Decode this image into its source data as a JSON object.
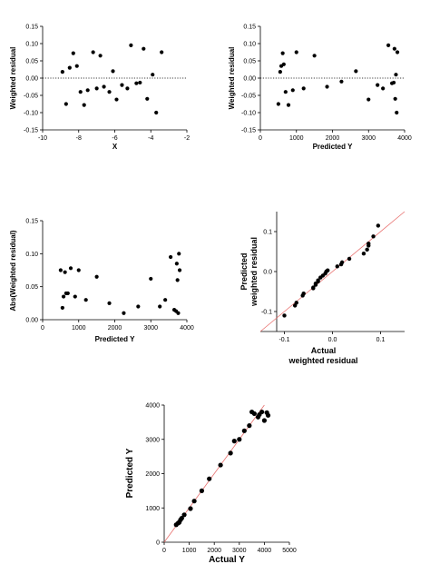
{
  "chart_data": [
    {
      "id": "p1",
      "type": "scatter",
      "xlabel": "X",
      "ylabel": "Weighted residual",
      "xlim": [
        -10,
        -2
      ],
      "ylim": [
        -0.15,
        0.15
      ],
      "xticks": [
        -10,
        -8,
        -6,
        -4,
        -2
      ],
      "yticks": [
        -0.15,
        -0.1,
        -0.05,
        0.0,
        0.05,
        0.1,
        0.15
      ],
      "xtick_labels": [
        "-10",
        "-8",
        "-6",
        "-4",
        "-2"
      ],
      "ytick_labels": [
        "-0.15",
        "-0.10",
        "-0.05",
        "0.00",
        "0.05",
        "0.10",
        "0.15"
      ],
      "reference_line": {
        "type": "horizontal",
        "y": 0,
        "style": "dotted"
      },
      "points": [
        {
          "x": -8.9,
          "y": 0.018
        },
        {
          "x": -8.7,
          "y": -0.075
        },
        {
          "x": -8.5,
          "y": 0.03
        },
        {
          "x": -8.3,
          "y": 0.072
        },
        {
          "x": -8.1,
          "y": 0.035
        },
        {
          "x": -7.9,
          "y": -0.04
        },
        {
          "x": -7.7,
          "y": -0.078
        },
        {
          "x": -7.5,
          "y": -0.035
        },
        {
          "x": -7.2,
          "y": 0.075
        },
        {
          "x": -7.0,
          "y": -0.03
        },
        {
          "x": -6.8,
          "y": 0.065
        },
        {
          "x": -6.6,
          "y": -0.025
        },
        {
          "x": -6.3,
          "y": -0.04
        },
        {
          "x": -6.1,
          "y": 0.02
        },
        {
          "x": -5.9,
          "y": -0.062
        },
        {
          "x": -5.6,
          "y": -0.02
        },
        {
          "x": -5.3,
          "y": -0.03
        },
        {
          "x": -5.1,
          "y": 0.095
        },
        {
          "x": -4.8,
          "y": -0.015
        },
        {
          "x": -4.6,
          "y": -0.013
        },
        {
          "x": -4.4,
          "y": 0.085
        },
        {
          "x": -4.2,
          "y": -0.06
        },
        {
          "x": -3.9,
          "y": 0.01
        },
        {
          "x": -3.7,
          "y": -0.1
        },
        {
          "x": -3.4,
          "y": 0.075
        }
      ]
    },
    {
      "id": "p2",
      "type": "scatter",
      "xlabel": "Predicted Y",
      "ylabel": "Weighted residual",
      "xlim": [
        0,
        4000
      ],
      "ylim": [
        -0.15,
        0.15
      ],
      "xticks": [
        0,
        1000,
        2000,
        3000,
        4000
      ],
      "yticks": [
        -0.15,
        -0.1,
        -0.05,
        0.0,
        0.05,
        0.1,
        0.15
      ],
      "xtick_labels": [
        "0",
        "1000",
        "2000",
        "3000",
        "4000"
      ],
      "ytick_labels": [
        "-0.15",
        "-0.10",
        "-0.05",
        "0.00",
        "0.05",
        "0.10",
        "0.15"
      ],
      "reference_line": {
        "type": "horizontal",
        "y": 0,
        "style": "dotted"
      },
      "points": [
        {
          "x": 500,
          "y": -0.075
        },
        {
          "x": 550,
          "y": 0.018
        },
        {
          "x": 580,
          "y": 0.035
        },
        {
          "x": 620,
          "y": 0.072
        },
        {
          "x": 650,
          "y": 0.04
        },
        {
          "x": 700,
          "y": -0.04
        },
        {
          "x": 780,
          "y": -0.078
        },
        {
          "x": 900,
          "y": -0.035
        },
        {
          "x": 1000,
          "y": 0.075
        },
        {
          "x": 1200,
          "y": -0.03
        },
        {
          "x": 1500,
          "y": 0.065
        },
        {
          "x": 1850,
          "y": -0.025
        },
        {
          "x": 2250,
          "y": -0.01
        },
        {
          "x": 2650,
          "y": 0.02
        },
        {
          "x": 3000,
          "y": -0.062
        },
        {
          "x": 3250,
          "y": -0.02
        },
        {
          "x": 3400,
          "y": -0.03
        },
        {
          "x": 3550,
          "y": 0.095
        },
        {
          "x": 3650,
          "y": -0.015
        },
        {
          "x": 3700,
          "y": -0.013
        },
        {
          "x": 3720,
          "y": 0.085
        },
        {
          "x": 3740,
          "y": -0.06
        },
        {
          "x": 3760,
          "y": 0.01
        },
        {
          "x": 3780,
          "y": -0.1
        },
        {
          "x": 3800,
          "y": 0.075
        }
      ]
    },
    {
      "id": "p3",
      "type": "scatter",
      "xlabel": "Predicted Y",
      "ylabel": "Abs(Weighted residual)",
      "xlim": [
        0,
        4000
      ],
      "ylim": [
        0,
        0.15
      ],
      "xticks": [
        0,
        1000,
        2000,
        3000,
        4000
      ],
      "yticks": [
        0,
        0.05,
        0.1,
        0.15
      ],
      "xtick_labels": [
        "0",
        "1000",
        "2000",
        "3000",
        "4000"
      ],
      "ytick_labels": [
        "0.00",
        "0.05",
        "0.10",
        "0.15"
      ],
      "points": [
        {
          "x": 500,
          "y": 0.075
        },
        {
          "x": 550,
          "y": 0.018
        },
        {
          "x": 580,
          "y": 0.035
        },
        {
          "x": 620,
          "y": 0.072
        },
        {
          "x": 650,
          "y": 0.04
        },
        {
          "x": 700,
          "y": 0.04
        },
        {
          "x": 780,
          "y": 0.078
        },
        {
          "x": 900,
          "y": 0.035
        },
        {
          "x": 1000,
          "y": 0.075
        },
        {
          "x": 1200,
          "y": 0.03
        },
        {
          "x": 1500,
          "y": 0.065
        },
        {
          "x": 1850,
          "y": 0.025
        },
        {
          "x": 2250,
          "y": 0.01
        },
        {
          "x": 2650,
          "y": 0.02
        },
        {
          "x": 3000,
          "y": 0.062
        },
        {
          "x": 3250,
          "y": 0.02
        },
        {
          "x": 3400,
          "y": 0.03
        },
        {
          "x": 3550,
          "y": 0.095
        },
        {
          "x": 3650,
          "y": 0.015
        },
        {
          "x": 3700,
          "y": 0.013
        },
        {
          "x": 3720,
          "y": 0.085
        },
        {
          "x": 3740,
          "y": 0.06
        },
        {
          "x": 3760,
          "y": 0.01
        },
        {
          "x": 3780,
          "y": 0.1
        },
        {
          "x": 3800,
          "y": 0.075
        }
      ]
    },
    {
      "id": "p4",
      "type": "scatter",
      "xlabel": "Actual\nweighted residual",
      "ylabel": "Predicted\nweighted residual",
      "xlim": [
        -0.15,
        0.15
      ],
      "ylim": [
        -0.15,
        0.15
      ],
      "xticks": [
        -0.1,
        0.0,
        0.1
      ],
      "yticks": [
        -0.1,
        0.0,
        0.1
      ],
      "xtick_labels": [
        "-0.1",
        "0.0",
        "0.1"
      ],
      "ytick_labels": [
        "-0.1",
        "0.0",
        "0.1"
      ],
      "reference_line": {
        "type": "identity",
        "color": "#e8706e"
      },
      "points": [
        {
          "x": -0.1,
          "y": -0.11
        },
        {
          "x": -0.078,
          "y": -0.085
        },
        {
          "x": -0.075,
          "y": -0.078
        },
        {
          "x": -0.062,
          "y": -0.06
        },
        {
          "x": -0.06,
          "y": -0.055
        },
        {
          "x": -0.04,
          "y": -0.042
        },
        {
          "x": -0.04,
          "y": -0.04
        },
        {
          "x": -0.035,
          "y": -0.033
        },
        {
          "x": -0.035,
          "y": -0.03
        },
        {
          "x": -0.03,
          "y": -0.025
        },
        {
          "x": -0.03,
          "y": -0.022
        },
        {
          "x": -0.025,
          "y": -0.015
        },
        {
          "x": -0.02,
          "y": -0.01
        },
        {
          "x": -0.015,
          "y": -0.005
        },
        {
          "x": -0.013,
          "y": 0.0
        },
        {
          "x": -0.01,
          "y": 0.003
        },
        {
          "x": 0.01,
          "y": 0.013
        },
        {
          "x": 0.018,
          "y": 0.018
        },
        {
          "x": 0.02,
          "y": 0.023
        },
        {
          "x": 0.035,
          "y": 0.032
        },
        {
          "x": 0.065,
          "y": 0.045
        },
        {
          "x": 0.072,
          "y": 0.055
        },
        {
          "x": 0.075,
          "y": 0.065
        },
        {
          "x": 0.075,
          "y": 0.07
        },
        {
          "x": 0.085,
          "y": 0.088
        },
        {
          "x": 0.095,
          "y": 0.115
        }
      ]
    },
    {
      "id": "p5",
      "type": "scatter",
      "xlabel": "Actual Y",
      "ylabel": "Predicted Y",
      "xlim": [
        0,
        5000
      ],
      "ylim": [
        0,
        4000
      ],
      "xticks": [
        0,
        1000,
        2000,
        3000,
        4000,
        5000
      ],
      "yticks": [
        0,
        1000,
        2000,
        3000,
        4000
      ],
      "xtick_labels": [
        "0",
        "1000",
        "2000",
        "3000",
        "4000",
        "5000"
      ],
      "ytick_labels": [
        "0",
        "1000",
        "2000",
        "3000",
        "4000"
      ],
      "reference_line": {
        "type": "identity",
        "color": "#e8706e"
      },
      "points": [
        {
          "x": 480,
          "y": 510
        },
        {
          "x": 560,
          "y": 560
        },
        {
          "x": 600,
          "y": 580
        },
        {
          "x": 650,
          "y": 650
        },
        {
          "x": 700,
          "y": 700
        },
        {
          "x": 800,
          "y": 800
        },
        {
          "x": 1050,
          "y": 980
        },
        {
          "x": 1200,
          "y": 1200
        },
        {
          "x": 1500,
          "y": 1500
        },
        {
          "x": 1800,
          "y": 1850
        },
        {
          "x": 2250,
          "y": 2250
        },
        {
          "x": 2650,
          "y": 2600
        },
        {
          "x": 2800,
          "y": 2950
        },
        {
          "x": 3000,
          "y": 3000
        },
        {
          "x": 3200,
          "y": 3250
        },
        {
          "x": 3400,
          "y": 3400
        },
        {
          "x": 3500,
          "y": 3800
        },
        {
          "x": 3600,
          "y": 3750
        },
        {
          "x": 3750,
          "y": 3650
        },
        {
          "x": 3800,
          "y": 3720
        },
        {
          "x": 3900,
          "y": 3800
        },
        {
          "x": 4000,
          "y": 3550
        },
        {
          "x": 4100,
          "y": 3780
        },
        {
          "x": 4150,
          "y": 3700
        }
      ]
    }
  ]
}
